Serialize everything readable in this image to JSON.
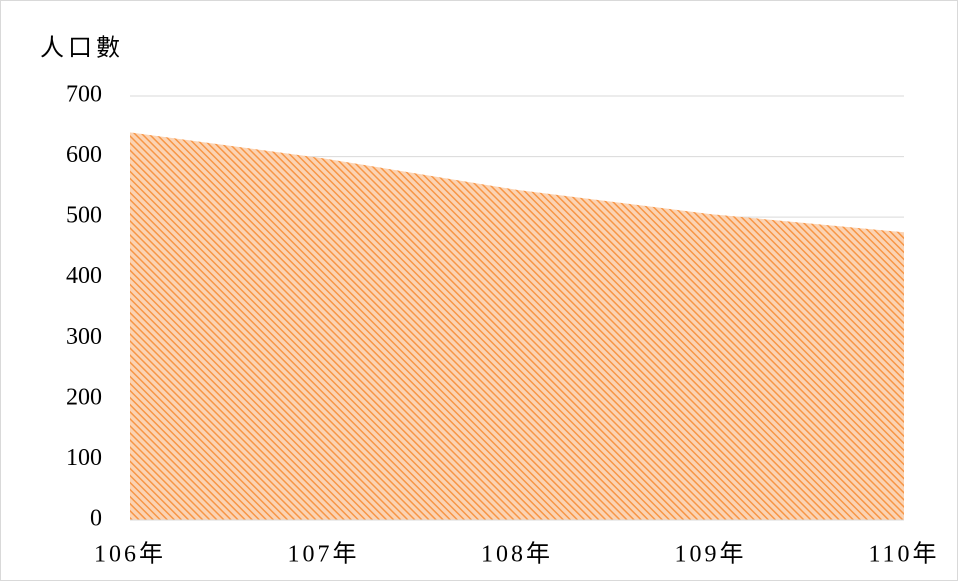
{
  "chart_data": {
    "type": "area",
    "y_axis_label": "人口數",
    "categories": [
      "106年",
      "107年",
      "108年",
      "109年",
      "110年"
    ],
    "values": [
      640,
      597,
      545,
      505,
      475
    ],
    "color": "#f79646",
    "ylim": [
      0,
      700
    ],
    "yticks": [
      0,
      100,
      200,
      300,
      400,
      500,
      600,
      700
    ],
    "grid": true
  }
}
